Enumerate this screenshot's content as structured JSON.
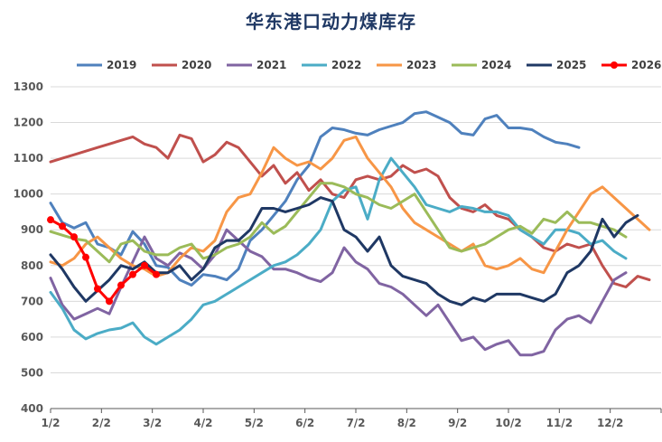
{
  "chart_data": {
    "type": "line",
    "title": "华东港口动力煤库存",
    "xlabel": "",
    "ylabel": "",
    "ylim": [
      400,
      1300
    ],
    "yticks": [
      400,
      500,
      600,
      700,
      800,
      900,
      1000,
      1100,
      1200,
      1300
    ],
    "xtick_labels": [
      "1/2",
      "2/2",
      "3/2",
      "4/2",
      "5/2",
      "6/2",
      "7/2",
      "8/2",
      "9/2",
      "10/2",
      "11/2",
      "12/2"
    ],
    "grid": "horizontal",
    "legend_position": "top",
    "series": [
      {
        "name": "2019",
        "color": "#4f81bd",
        "marker": "none",
        "values": [
          975,
          920,
          905,
          920,
          860,
          850,
          830,
          895,
          860,
          800,
          795,
          760,
          745,
          775,
          770,
          760,
          790,
          870,
          900,
          940,
          980,
          1040,
          1080,
          1160,
          1185,
          1180,
          1170,
          1165,
          1180,
          1190,
          1200,
          1225,
          1230,
          1215,
          1200,
          1170,
          1165,
          1210,
          1220,
          1185,
          1185,
          1180,
          1160,
          1145,
          1140,
          1130
        ]
      },
      {
        "name": "2020",
        "color": "#c0504d",
        "marker": "none",
        "values": [
          1090,
          1100,
          1110,
          1120,
          1130,
          1140,
          1150,
          1160,
          1140,
          1130,
          1100,
          1165,
          1155,
          1090,
          1110,
          1145,
          1130,
          1090,
          1050,
          1080,
          1030,
          1060,
          1010,
          1040,
          1000,
          990,
          1040,
          1050,
          1040,
          1050,
          1080,
          1060,
          1070,
          1050,
          990,
          960,
          950,
          970,
          940,
          930,
          900,
          880,
          850,
          840,
          860,
          850,
          860,
          800,
          750,
          740,
          770,
          760
        ]
      },
      {
        "name": "2021",
        "color": "#8064a2",
        "marker": "none",
        "values": [
          765,
          690,
          650,
          665,
          680,
          665,
          740,
          810,
          880,
          820,
          800,
          835,
          820,
          790,
          830,
          900,
          870,
          840,
          825,
          790,
          790,
          780,
          765,
          755,
          780,
          850,
          810,
          790,
          750,
          740,
          720,
          690,
          660,
          690,
          640,
          590,
          600,
          565,
          580,
          590,
          550,
          550,
          560,
          620,
          650,
          660,
          640,
          700,
          760,
          780
        ]
      },
      {
        "name": "2022",
        "color": "#4bacc6",
        "marker": "none",
        "values": [
          725,
          680,
          620,
          595,
          610,
          620,
          625,
          640,
          600,
          580,
          600,
          620,
          650,
          690,
          700,
          720,
          740,
          760,
          780,
          800,
          810,
          830,
          860,
          900,
          980,
          1010,
          1020,
          930,
          1040,
          1100,
          1060,
          1020,
          970,
          960,
          950,
          965,
          960,
          950,
          950,
          940,
          900,
          880,
          860,
          900,
          900,
          890,
          860,
          870,
          840,
          820
        ]
      },
      {
        "name": "2023",
        "color": "#f79646",
        "marker": "none",
        "values": [
          810,
          800,
          820,
          860,
          880,
          850,
          820,
          800,
          790,
          770,
          780,
          820,
          850,
          840,
          870,
          950,
          990,
          1000,
          1060,
          1130,
          1100,
          1080,
          1090,
          1070,
          1100,
          1150,
          1160,
          1100,
          1060,
          1020,
          960,
          920,
          900,
          880,
          860,
          840,
          860,
          800,
          790,
          800,
          820,
          790,
          780,
          840,
          900,
          950,
          1000,
          1020,
          990,
          960,
          930,
          900
        ]
      },
      {
        "name": "2024",
        "color": "#9bbb59",
        "marker": "none",
        "values": [
          895,
          885,
          875,
          870,
          840,
          810,
          860,
          870,
          840,
          830,
          830,
          850,
          860,
          820,
          830,
          850,
          860,
          880,
          920,
          890,
          910,
          950,
          990,
          1030,
          1030,
          1020,
          1000,
          990,
          970,
          960,
          980,
          1000,
          950,
          900,
          850,
          840,
          850,
          860,
          880,
          900,
          910,
          890,
          930,
          920,
          950,
          920,
          920,
          910,
          900,
          880
        ]
      },
      {
        "name": "2025",
        "color": "#1f3864",
        "marker": "none",
        "values": [
          830,
          790,
          740,
          700,
          730,
          760,
          800,
          790,
          810,
          780,
          780,
          800,
          760,
          790,
          850,
          870,
          870,
          900,
          960,
          960,
          950,
          960,
          970,
          990,
          980,
          900,
          880,
          840,
          880,
          800,
          770,
          760,
          750,
          720,
          700,
          690,
          710,
          700,
          720,
          720,
          720,
          710,
          700,
          720,
          780,
          800,
          840,
          930,
          880,
          920,
          940
        ]
      },
      {
        "name": "2026",
        "color": "#ff0000",
        "marker": "circle",
        "values": [
          928,
          910,
          880,
          823,
          735,
          700,
          745,
          775,
          800,
          775
        ]
      }
    ]
  }
}
